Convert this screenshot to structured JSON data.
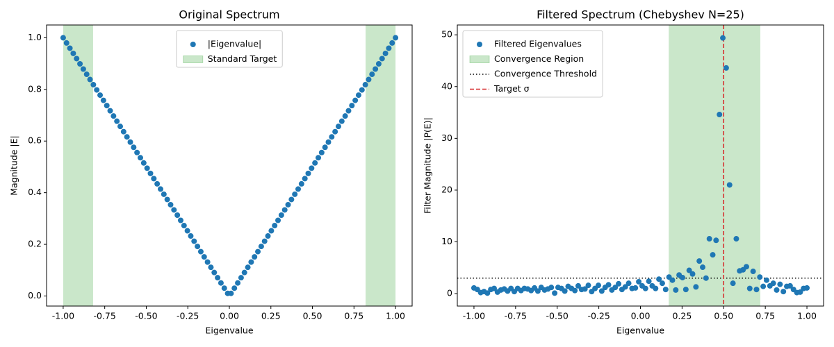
{
  "chart_data": [
    {
      "type": "scatter",
      "title": "Original Spectrum",
      "xlabel": "Eigenvalue",
      "ylabel": "Magnitude |E|",
      "xlim": [
        -1.1,
        1.1
      ],
      "ylim": [
        -0.039,
        1.0495
      ],
      "xticks": [
        {
          "value": -1,
          "label": "-1.00"
        },
        {
          "value": -0.75,
          "label": "-0.75"
        },
        {
          "value": -0.5,
          "label": "-0.50"
        },
        {
          "value": -0.25,
          "label": "-0.25"
        },
        {
          "value": 0,
          "label": "0.00"
        },
        {
          "value": 0.25,
          "label": "0.25"
        },
        {
          "value": 0.5,
          "label": "0.50"
        },
        {
          "value": 0.75,
          "label": "0.75"
        },
        {
          "value": 1,
          "label": "1.00"
        }
      ],
      "yticks": [
        {
          "value": 0,
          "label": "0.0"
        },
        {
          "value": 0.2,
          "label": "0.2"
        },
        {
          "value": 0.4,
          "label": "0.4"
        },
        {
          "value": 0.6,
          "label": "0.6"
        },
        {
          "value": 0.8,
          "label": "0.8"
        },
        {
          "value": 1,
          "label": "1.0"
        }
      ],
      "legend": "upper center",
      "series": [
        {
          "name": "|Eigenvalue|",
          "color": "#1f77b4",
          "x": [
            -1,
            -0.9798,
            -0.9596,
            -0.9394,
            -0.9192,
            -0.899,
            -0.8788,
            -0.8586,
            -0.8384,
            -0.8182,
            -0.798,
            -0.7778,
            -0.7576,
            -0.7374,
            -0.7172,
            -0.697,
            -0.6768,
            -0.6566,
            -0.6364,
            -0.6162,
            -0.596,
            -0.5758,
            -0.5556,
            -0.5354,
            -0.5152,
            -0.4949,
            -0.4747,
            -0.4545,
            -0.4343,
            -0.4141,
            -0.3939,
            -0.3737,
            -0.3535,
            -0.3333,
            -0.3131,
            -0.2929,
            -0.2727,
            -0.2525,
            -0.2323,
            -0.2121,
            -0.1919,
            -0.1717,
            -0.1515,
            -0.1313,
            -0.1111,
            -0.0909,
            -0.0707,
            -0.0505,
            -0.0303,
            -0.0101,
            0.0101,
            0.0303,
            0.0505,
            0.0707,
            0.0909,
            0.1111,
            0.1313,
            0.1515,
            0.1717,
            0.1919,
            0.2121,
            0.2323,
            0.2525,
            0.2727,
            0.2929,
            0.3131,
            0.3333,
            0.3535,
            0.3737,
            0.3939,
            0.4141,
            0.4343,
            0.4545,
            0.4747,
            0.4949,
            0.5152,
            0.5354,
            0.5556,
            0.5758,
            0.596,
            0.6162,
            0.6364,
            0.6566,
            0.6768,
            0.697,
            0.7172,
            0.7374,
            0.7576,
            0.7778,
            0.798,
            0.8182,
            0.8384,
            0.8586,
            0.8788,
            0.899,
            0.9192,
            0.9394,
            0.9596,
            0.9798,
            1
          ],
          "values": [
            1,
            0.9798,
            0.9596,
            0.9394,
            0.9192,
            0.899,
            0.8788,
            0.8586,
            0.8384,
            0.8182,
            0.798,
            0.7778,
            0.7576,
            0.7374,
            0.7172,
            0.697,
            0.6768,
            0.6566,
            0.6364,
            0.6162,
            0.596,
            0.5758,
            0.5556,
            0.5354,
            0.5152,
            0.4949,
            0.4747,
            0.4545,
            0.4343,
            0.4141,
            0.3939,
            0.3737,
            0.3535,
            0.3333,
            0.3131,
            0.2929,
            0.2727,
            0.2525,
            0.2323,
            0.2121,
            0.1919,
            0.1717,
            0.1515,
            0.1313,
            0.1111,
            0.0909,
            0.0707,
            0.0505,
            0.0303,
            0.0101,
            0.0101,
            0.0303,
            0.0505,
            0.0707,
            0.0909,
            0.1111,
            0.1313,
            0.1515,
            0.1717,
            0.1919,
            0.2121,
            0.2323,
            0.2525,
            0.2727,
            0.2929,
            0.3131,
            0.3333,
            0.3535,
            0.3737,
            0.3939,
            0.4141,
            0.4343,
            0.4545,
            0.4747,
            0.4949,
            0.5152,
            0.5354,
            0.5556,
            0.5758,
            0.596,
            0.6162,
            0.6364,
            0.6566,
            0.6768,
            0.697,
            0.7172,
            0.7374,
            0.7576,
            0.7778,
            0.798,
            0.8182,
            0.8384,
            0.8586,
            0.8788,
            0.899,
            0.9192,
            0.9394,
            0.9596,
            0.9798,
            1
          ]
        }
      ],
      "regions": [
        {
          "name": "Standard Target",
          "color": "#2ca02c",
          "ranges": [
            [
              -1,
              -0.82
            ],
            [
              0.82,
              1
            ]
          ]
        }
      ],
      "hlines": [],
      "vlines": []
    },
    {
      "type": "scatter",
      "title": "Filtered Spectrum (Chebyshev N=25)",
      "xlabel": "Eigenvalue",
      "ylabel": "Filter Magnitude |P(E)|",
      "xlim": [
        -1.1,
        1.1
      ],
      "ylim": [
        -2.4,
        51.9
      ],
      "xticks": [
        {
          "value": -1,
          "label": "-1.00"
        },
        {
          "value": -0.75,
          "label": "-0.75"
        },
        {
          "value": -0.5,
          "label": "-0.50"
        },
        {
          "value": -0.25,
          "label": "-0.25"
        },
        {
          "value": 0,
          "label": "0.00"
        },
        {
          "value": 0.25,
          "label": "0.25"
        },
        {
          "value": 0.5,
          "label": "0.50"
        },
        {
          "value": 0.75,
          "label": "0.75"
        },
        {
          "value": 1,
          "label": "1.00"
        }
      ],
      "yticks": [
        0,
        10,
        20,
        30,
        40,
        50
      ],
      "legend": "upper left",
      "series": [
        {
          "name": "Filtered Eigenvalues",
          "color": "#1f77b4",
          "x": [
            -1,
            -0.9798,
            -0.9596,
            -0.9394,
            -0.9192,
            -0.899,
            -0.8788,
            -0.8586,
            -0.8384,
            -0.8182,
            -0.798,
            -0.7778,
            -0.7576,
            -0.7374,
            -0.7172,
            -0.697,
            -0.6768,
            -0.6566,
            -0.6364,
            -0.6162,
            -0.596,
            -0.5758,
            -0.5556,
            -0.5354,
            -0.5152,
            -0.4949,
            -0.4747,
            -0.4545,
            -0.4343,
            -0.4141,
            -0.3939,
            -0.3737,
            -0.3535,
            -0.3333,
            -0.3131,
            -0.2929,
            -0.2727,
            -0.2525,
            -0.2323,
            -0.2121,
            -0.1919,
            -0.1717,
            -0.1515,
            -0.1313,
            -0.1111,
            -0.0909,
            -0.0707,
            -0.0505,
            -0.0303,
            -0.0101,
            0.0101,
            0.0303,
            0.0505,
            0.0707,
            0.0909,
            0.1111,
            0.1313,
            0.1515,
            0.1717,
            0.1919,
            0.2121,
            0.2323,
            0.2525,
            0.2727,
            0.2929,
            0.3131,
            0.3333,
            0.3535,
            0.3737,
            0.3939,
            0.4141,
            0.4343,
            0.4545,
            0.4747,
            0.4949,
            0.5152,
            0.5354,
            0.5556,
            0.5758,
            0.596,
            0.6162,
            0.6364,
            0.6566,
            0.6768,
            0.697,
            0.7172,
            0.7374,
            0.7576,
            0.7778,
            0.798,
            0.8182,
            0.8384,
            0.8586,
            0.8788,
            0.899,
            0.9192,
            0.9394,
            0.9596,
            0.9798,
            1
          ],
          "values": [
            1.1,
            0.8,
            0.2,
            0.4,
            0.1,
            0.8,
            1.0,
            0.3,
            0.7,
            0.9,
            0.5,
            1.0,
            0.4,
            1.0,
            0.6,
            1.0,
            0.9,
            0.6,
            1.1,
            0.5,
            1.2,
            0.7,
            0.9,
            1.2,
            0.1,
            1.2,
            1.0,
            0.5,
            1.4,
            1.0,
            0.6,
            1.5,
            0.8,
            0.9,
            1.6,
            0.4,
            1.0,
            1.6,
            0.5,
            1.2,
            1.7,
            0.7,
            1.2,
            1.9,
            0.8,
            1.3,
            2.0,
            1.0,
            1.1,
            2.3,
            1.5,
            1.0,
            2.4,
            1.5,
            1.0,
            2.8,
            2.0,
            0.8,
            3.2,
            2.6,
            0.7,
            3.6,
            3.1,
            0.8,
            4.5,
            3.8,
            1.3,
            6.3,
            5.1,
            3.0,
            10.6,
            7.5,
            10.3,
            34.6,
            49.4,
            43.6,
            21.0,
            2.0,
            10.6,
            4.4,
            4.6,
            5.2,
            1.0,
            4.3,
            0.8,
            3.2,
            1.4,
            2.6,
            1.5,
            2.0,
            0.7,
            1.8,
            0.4,
            1.4,
            1.5,
            0.8,
            0.2,
            0.3,
            1.0,
            1.1
          ]
        }
      ],
      "regions": [
        {
          "name": "Convergence Region",
          "color": "#2ca02c",
          "ranges": [
            [
              0.17,
              0.72
            ]
          ]
        }
      ],
      "hlines": [
        {
          "name": "Convergence Threshold",
          "value": 3,
          "color": "#000000",
          "style": "dotted"
        }
      ],
      "vlines": [
        {
          "name": "Target σ",
          "value": 0.5,
          "color": "#d62728",
          "style": "dashed"
        }
      ]
    }
  ]
}
